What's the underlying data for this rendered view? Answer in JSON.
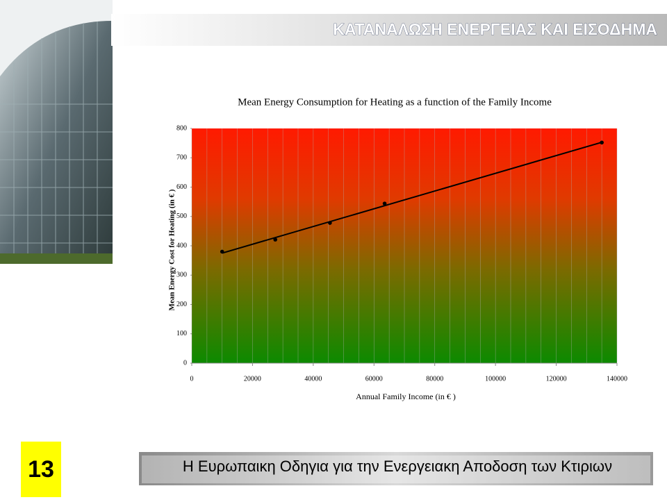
{
  "header": {
    "title": "ΚΑΤΑΝΑΛΩΣΗ ΕΝΕΡΓΕΙΑΣ ΚΑΙ ΕΙΣΟΔΗΜΑ"
  },
  "footer": {
    "page_number": "13",
    "text": "Η Ευρωπαικη Οδηγια για την Ενεργειακη Αποδοση των Κτιριων"
  },
  "chart_data": {
    "type": "scatter",
    "title": "Mean Energy Consumption for Heating as a function of the Family Income",
    "x_label": "Annual Family Income (in € )",
    "y_label": "Mean Energy Cost for Heating (in € )",
    "x": [
      10000,
      27500,
      45500,
      63500,
      135000
    ],
    "values": [
      380,
      421,
      478,
      544,
      752
    ],
    "color": "#000000",
    "trendline": "linear",
    "xlim": [
      0,
      140000
    ],
    "xticks": [
      0,
      20000,
      40000,
      60000,
      80000,
      100000,
      120000,
      140000
    ],
    "ylim": [
      0,
      800
    ],
    "yticks": [
      0,
      100,
      200,
      300,
      400,
      500,
      600,
      700,
      800
    ],
    "grid": true
  }
}
